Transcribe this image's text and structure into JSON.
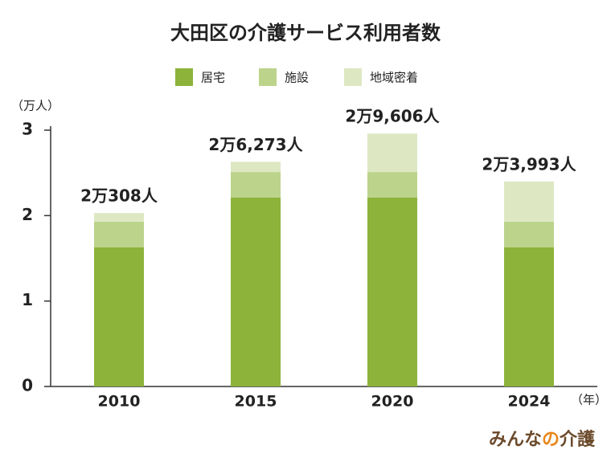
{
  "chart_data": {
    "type": "stacked_bar",
    "title": "大田区の介護サービス利用者数",
    "y_unit": "（万人）",
    "x_unit": "（年）",
    "categories": [
      "2010",
      "2015",
      "2020",
      "2024"
    ],
    "series": [
      {
        "name": "居宅",
        "color": "#8db33a",
        "values": [
          1.63,
          2.21,
          2.21,
          1.63
        ]
      },
      {
        "name": "施設",
        "color": "#bcd38b",
        "values": [
          0.3,
          0.3,
          0.3,
          0.3
        ]
      },
      {
        "name": "地域密着",
        "color": "#dde8c3",
        "values": [
          0.1,
          0.12,
          0.45,
          0.47
        ]
      }
    ],
    "totals": [
      2.0308,
      2.6273,
      2.9606,
      2.3993
    ],
    "total_labels": [
      "2万308人",
      "2万6,273人",
      "2万9,606人",
      "2万3,993人"
    ],
    "ylim": [
      0,
      3
    ],
    "yticks": [
      0,
      1,
      2,
      3
    ],
    "grid": false,
    "legend": "top",
    "brand": [
      "みんな",
      "の",
      "介護"
    ]
  }
}
